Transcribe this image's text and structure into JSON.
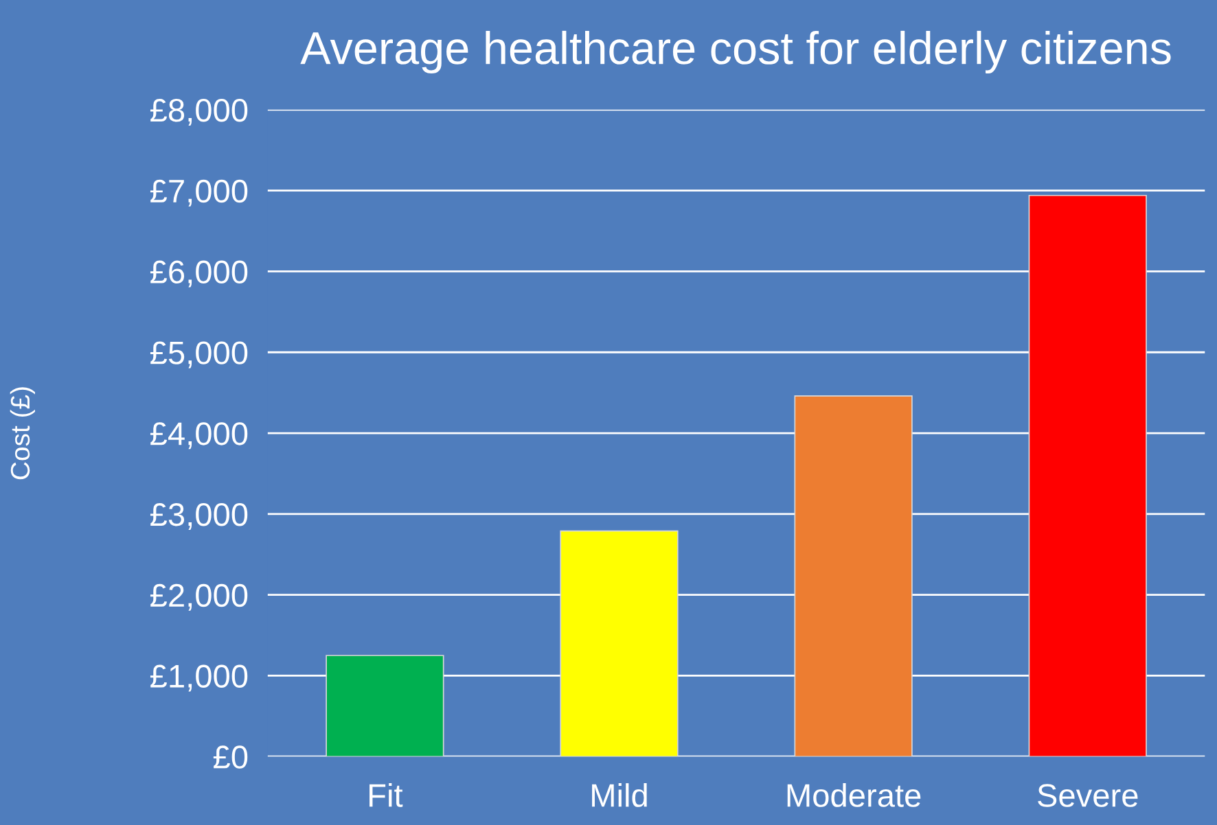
{
  "chart_data": {
    "type": "bar",
    "title": "Average healthcare cost for elderly citizens",
    "ylabel": "Cost (£)",
    "categories": [
      "Fit",
      "Mild",
      "Moderate",
      "Severe"
    ],
    "values": [
      1250,
      2790,
      4460,
      6940
    ],
    "colors": [
      "#00b050",
      "#ffff00",
      "#ed7d31",
      "#ff0000"
    ],
    "ylim": [
      0,
      8000
    ],
    "yticks": [
      {
        "value": 0,
        "label": "£0"
      },
      {
        "value": 1000,
        "label": "£1,000"
      },
      {
        "value": 2000,
        "label": "£2,000"
      },
      {
        "value": 3000,
        "label": "£3,000"
      },
      {
        "value": 4000,
        "label": "£4,000"
      },
      {
        "value": 5000,
        "label": "£5,000"
      },
      {
        "value": 6000,
        "label": "£6,000"
      },
      {
        "value": 7000,
        "label": "£7,000"
      },
      {
        "value": 8000,
        "label": "£8,000"
      }
    ],
    "grid": "y"
  }
}
